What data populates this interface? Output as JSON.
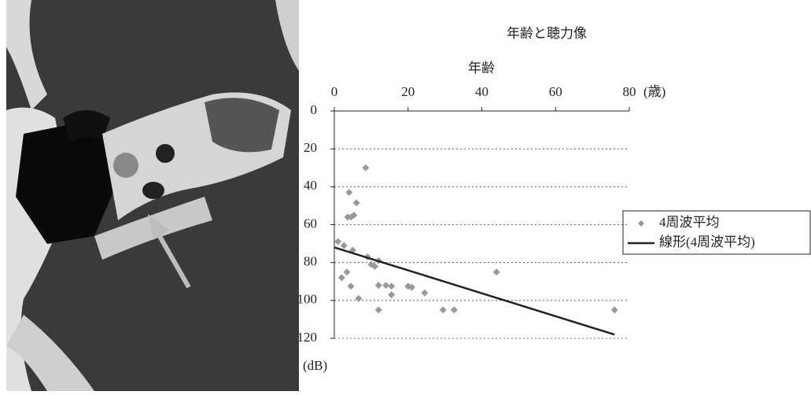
{
  "chart_data": {
    "type": "scatter",
    "title": "年齢と聴力像",
    "x_label": "年齢",
    "x_unit": "(歳)",
    "y_unit": "(dB)",
    "xlim": [
      0,
      80
    ],
    "xticks": [
      0,
      20,
      40,
      60,
      80
    ],
    "ylim": [
      0,
      120
    ],
    "yticks": [
      0,
      20,
      40,
      60,
      80,
      100,
      120
    ],
    "y_inverted": true,
    "grid": true,
    "series": [
      {
        "name": "4周波平均",
        "type": "scatter",
        "color": "#999999",
        "x": [
          1,
          2,
          2.6,
          4,
          3.6,
          4.5,
          5.3,
          6,
          5,
          3.4,
          4.5,
          6.6,
          8.5,
          9,
          10,
          11,
          12,
          12,
          12,
          14,
          15.5,
          15.5,
          20,
          21,
          24.5,
          29.5,
          32.5,
          44,
          76
        ],
        "values": [
          69,
          88,
          71,
          43,
          56,
          56,
          55,
          48.5,
          73.5,
          85,
          92.5,
          99,
          30,
          77,
          81,
          82,
          79,
          92,
          105,
          92,
          92.5,
          97,
          92.5,
          93,
          96,
          105,
          105,
          85,
          105
        ]
      },
      {
        "name": "線形(4周波平均)",
        "type": "line",
        "color": "#222222",
        "x": [
          0,
          76
        ],
        "values": [
          72,
          118
        ]
      }
    ]
  }
}
